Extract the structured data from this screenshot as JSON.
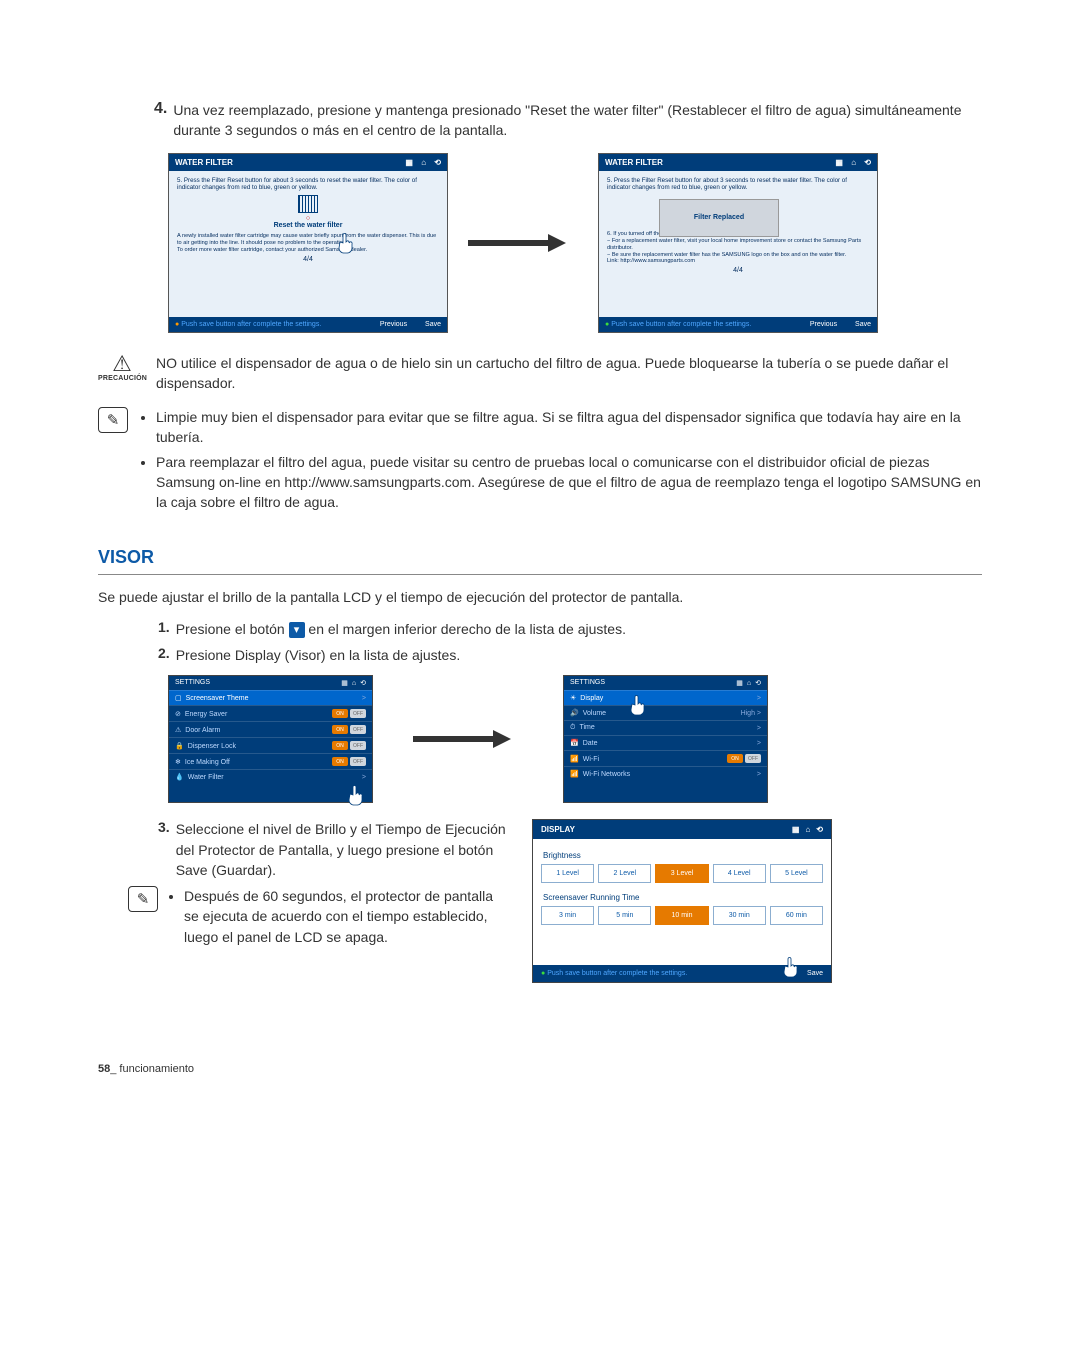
{
  "step4": {
    "num": "4.",
    "text": "Una vez reemplazado, presione y mantenga presionado \"Reset the water filter\" (Restablecer el filtro de agua) simultáneamente durante 3 segundos o más en el centro de la pantalla."
  },
  "panel_left": {
    "title": "WATER FILTER",
    "instr": "5. Press the Filter Reset button for about 3 seconds to reset the water filter. The color of indicator changes from red to blue, green or yellow.",
    "reset_label": "Reset the water filter",
    "body_text": "A newly installed water filter cartridge may cause water briefly spurt from the water dispenser. This is due to air getting into the line. It should pose no problem to the operation.\nTo order more water filter cartridge, contact your authorized Samsung dealer.",
    "page_ind": "4/4",
    "footer_hint": "Push save button after complete the settings.",
    "prev": "Previous",
    "save": "Save"
  },
  "panel_right": {
    "title": "WATER FILTER",
    "instr": "5. Press the Filter Reset button for about 3 seconds to reset the water filter. The color of indicator changes from red to blue, green or yellow.",
    "popup": "Filter Replaced",
    "body_text": "6. If you turned off the water filter indicator, turn it on.\n− For a replacement water filter, visit your local home improvement store or contact the Samsung Parts distributor.\n− Be sure the replacement water filter has the SAMSUNG logo on the box and on the water filter.\nLink: http://www.samsungparts.com",
    "page_ind": "4/4",
    "footer_hint": "Push save button after complete the settings.",
    "prev": "Previous",
    "save": "Save"
  },
  "caution": {
    "label": "PRECAUCIÓN",
    "text": "NO utilice el dispensador de agua o de hielo sin un cartucho del filtro de agua. Puede bloquearse la tubería o se puede dañar el dispensador."
  },
  "note1": {
    "b1": "Limpie muy bien el dispensador para evitar que se filtre agua. Si se filtra agua del dispensador significa que todavía hay aire en la tubería.",
    "b2": "Para reemplazar el filtro del agua, puede visitar su centro de pruebas local o comunicarse con el distribuidor oficial de piezas Samsung on-line en http://www.samsungparts.com. Asegúrese de que el filtro de agua de reemplazo tenga el logotipo SAMSUNG en la caja sobre el filtro de agua."
  },
  "visor": {
    "heading": "VISOR",
    "intro": "Se puede ajustar el brillo de la pantalla LCD y el tiempo de ejecución del protector de pantalla.",
    "s1a": "Presione el botón ",
    "s1b": " en el margen inferior derecho de la lista de ajustes.",
    "s2": "Presione Display (Visor) en la lista de ajustes.",
    "s3": "Seleccione el nivel de Brillo y el Tiempo de Ejecución del Protector de Pantalla, y luego presione el botón Save (Guardar).",
    "sb": "Después de 60 segundos, el protector de pantalla se ejecuta de acuerdo con el tiempo establecido, luego el panel de LCD se apaga."
  },
  "settingsA": {
    "title": "SETTINGS",
    "rows": [
      {
        "icon": "▢",
        "label": "Screensaver Theme",
        "right": ">",
        "hl": true
      },
      {
        "icon": "⊘",
        "label": "Energy Saver",
        "toggle": true,
        "on": "ON",
        "off": "OFF"
      },
      {
        "icon": "⚠",
        "label": "Door Alarm",
        "toggle": true,
        "on": "ON",
        "off": "OFF"
      },
      {
        "icon": "🔒",
        "label": "Dispenser Lock",
        "toggle": true,
        "on": "ON",
        "off": "OFF"
      },
      {
        "icon": "❄",
        "label": "Ice Making Off",
        "toggle": true,
        "on": "ON",
        "off": "OFF"
      },
      {
        "icon": "💧",
        "label": "Water Filter",
        "right": ">"
      }
    ]
  },
  "settingsB": {
    "title": "SETTINGS",
    "rows": [
      {
        "icon": "☀",
        "label": "Display",
        "right": ">",
        "hl": true
      },
      {
        "icon": "🔊",
        "label": "Volume",
        "right": "High  >"
      },
      {
        "icon": "⏱",
        "label": "Time",
        "right": ">"
      },
      {
        "icon": "📅",
        "label": "Date",
        "right": ">"
      },
      {
        "icon": "📶",
        "label": "Wi-Fi",
        "toggle": true,
        "on": "ON",
        "off": "OFF"
      },
      {
        "icon": "📶",
        "label": "Wi-Fi Networks",
        "right": ">"
      }
    ]
  },
  "display_panel": {
    "title": "DISPLAY",
    "brightness_label": "Brightness",
    "levels": [
      "1 Level",
      "2 Level",
      "3 Level",
      "4 Level",
      "5 Level"
    ],
    "level_selected": 2,
    "running_label": "Screensaver Running Time",
    "times": [
      "3 min",
      "5 min",
      "10 min",
      "30 min",
      "60 min"
    ],
    "time_selected": 2,
    "footer_hint": "Push save button after complete the settings.",
    "save": "Save"
  },
  "footer": {
    "num": "58",
    "label": "_ funcionamiento"
  },
  "icons": {
    "apps": "▦",
    "home": "⌂",
    "back": "⟲"
  },
  "colors": {
    "heading": "#0d5aa7",
    "panel_bg": "#003d7a",
    "panel_body": "#e8f0f8",
    "accent": "#e67a00"
  }
}
